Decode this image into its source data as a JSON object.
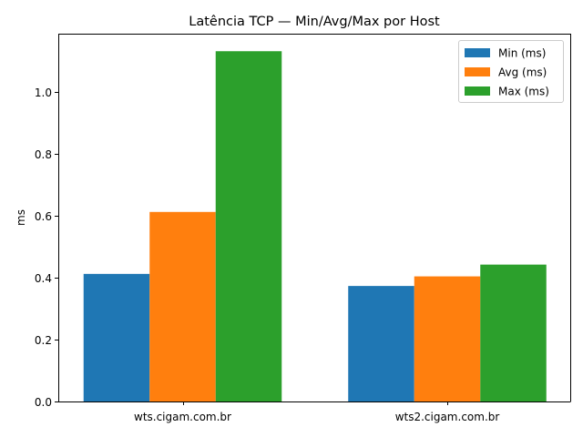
{
  "chart_data": {
    "type": "bar",
    "title": "Latência TCP — Min/Avg/Max por Host",
    "xlabel": "",
    "ylabel": "ms",
    "categories": [
      "wts.cigam.com.br",
      "wts2.cigam.com.br"
    ],
    "series": [
      {
        "name": "Min (ms)",
        "values": [
          0.412,
          0.373
        ],
        "color": "#1f77b4"
      },
      {
        "name": "Avg (ms)",
        "values": [
          0.612,
          0.404
        ],
        "color": "#ff7f0e"
      },
      {
        "name": "Max (ms)",
        "values": [
          1.131,
          0.442
        ],
        "color": "#2ca02c"
      }
    ],
    "ylim": [
      0,
      1.1876
    ],
    "yticks": [
      "0.0",
      "0.2",
      "0.4",
      "0.6",
      "0.8",
      "1.0"
    ],
    "grid": false,
    "legend_position": "top-right"
  }
}
